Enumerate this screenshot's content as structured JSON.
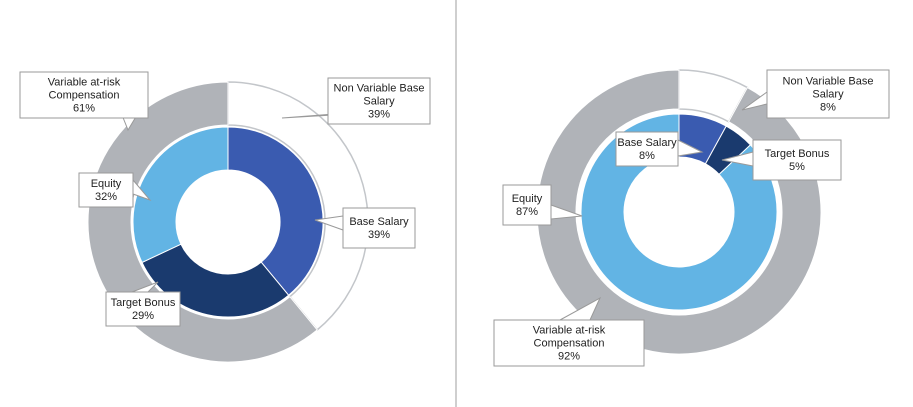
{
  "colors": {
    "base_salary": "#3a5bb0",
    "target_bonus": "#1a3a6e",
    "equity": "#62b4e4",
    "variable": "#b0b3b8",
    "non_variable": "#ffffff",
    "outline": "#c3c6ca",
    "divider": "#bfbfbf",
    "callout_border": "#9a9a9a"
  },
  "chart_data": [
    {
      "type": "donut",
      "title": "",
      "outer_ring": [
        {
          "key": "non_variable",
          "label_lines": [
            "Non Variable Base",
            "Salary"
          ],
          "value": 39,
          "pct_text": "39%"
        },
        {
          "key": "variable",
          "label_lines": [
            "Variable at-risk",
            "Compensation"
          ],
          "value": 61,
          "pct_text": "61%"
        }
      ],
      "inner_ring": [
        {
          "key": "base_salary",
          "label_lines": [
            "Base Salary"
          ],
          "value": 39,
          "pct_text": "39%"
        },
        {
          "key": "target_bonus",
          "label_lines": [
            "Target Bonus"
          ],
          "value": 29,
          "pct_text": "29%"
        },
        {
          "key": "equity",
          "label_lines": [
            "Equity"
          ],
          "value": 32,
          "pct_text": "32%"
        }
      ]
    },
    {
      "type": "donut",
      "title": "",
      "outer_ring": [
        {
          "key": "non_variable",
          "label_lines": [
            "Non Variable Base",
            "Salary"
          ],
          "value": 8,
          "pct_text": "8%"
        },
        {
          "key": "variable",
          "label_lines": [
            "Variable at-risk",
            "Compensation"
          ],
          "value": 92,
          "pct_text": "92%"
        }
      ],
      "inner_ring": [
        {
          "key": "base_salary",
          "label_lines": [
            "Base Salary"
          ],
          "value": 8,
          "pct_text": "8%"
        },
        {
          "key": "target_bonus",
          "label_lines": [
            "Target Bonus"
          ],
          "value": 5,
          "pct_text": "5%"
        },
        {
          "key": "equity",
          "label_lines": [
            "Equity"
          ],
          "value": 87,
          "pct_text": "87%"
        }
      ]
    }
  ]
}
